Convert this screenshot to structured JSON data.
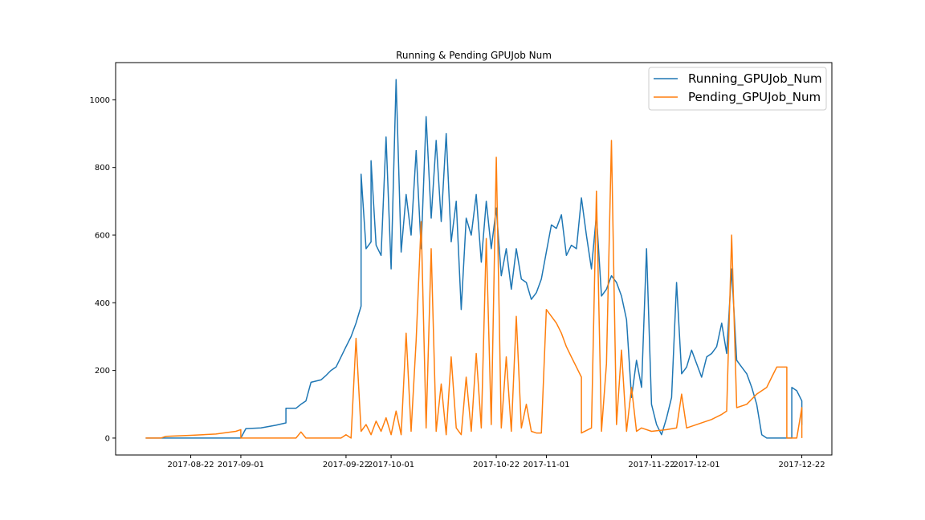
{
  "chart_data": {
    "type": "line",
    "title": "Running & Pending GPUJob Num",
    "xlabel": "",
    "ylabel": "",
    "x_axis": "date",
    "xlim": [
      "2017-08-07",
      "2017-12-28"
    ],
    "ylim": [
      -50,
      1110
    ],
    "x_ticks": [
      "2017-08-22",
      "2017-09-01",
      "2017-09-22",
      "2017-10-01",
      "2017-10-22",
      "2017-11-01",
      "2017-11-22",
      "2017-12-01",
      "2017-12-22"
    ],
    "y_ticks": [
      0,
      200,
      400,
      600,
      800,
      1000
    ],
    "grid": false,
    "legend_position": "top-right",
    "series": [
      {
        "name": "Running_GPUJob_Num",
        "color": "#1f77b4",
        "points": [
          [
            "2017-08-13",
            0
          ],
          [
            "2017-08-20",
            0
          ],
          [
            "2017-09-01",
            0
          ],
          [
            "2017-09-02",
            28
          ],
          [
            "2017-09-05",
            30
          ],
          [
            "2017-09-08",
            38
          ],
          [
            "2017-09-10",
            45
          ],
          [
            "2017-09-10",
            88
          ],
          [
            "2017-09-12",
            88
          ],
          [
            "2017-09-13",
            100
          ],
          [
            "2017-09-14",
            110
          ],
          [
            "2017-09-15",
            165
          ],
          [
            "2017-09-17",
            172
          ],
          [
            "2017-09-18",
            185
          ],
          [
            "2017-09-19",
            200
          ],
          [
            "2017-09-20",
            210
          ],
          [
            "2017-09-21",
            240
          ],
          [
            "2017-09-22",
            270
          ],
          [
            "2017-09-23",
            300
          ],
          [
            "2017-09-24",
            340
          ],
          [
            "2017-09-25",
            390
          ],
          [
            "2017-09-25",
            780
          ],
          [
            "2017-09-26",
            560
          ],
          [
            "2017-09-27",
            580
          ],
          [
            "2017-09-27",
            820
          ],
          [
            "2017-09-28",
            570
          ],
          [
            "2017-09-29",
            540
          ],
          [
            "2017-09-30",
            890
          ],
          [
            "2017-10-01",
            500
          ],
          [
            "2017-10-02",
            1060
          ],
          [
            "2017-10-03",
            550
          ],
          [
            "2017-10-04",
            720
          ],
          [
            "2017-10-05",
            600
          ],
          [
            "2017-10-06",
            850
          ],
          [
            "2017-10-07",
            560
          ],
          [
            "2017-10-08",
            950
          ],
          [
            "2017-10-09",
            650
          ],
          [
            "2017-10-10",
            880
          ],
          [
            "2017-10-11",
            640
          ],
          [
            "2017-10-12",
            900
          ],
          [
            "2017-10-13",
            580
          ],
          [
            "2017-10-14",
            700
          ],
          [
            "2017-10-15",
            380
          ],
          [
            "2017-10-16",
            650
          ],
          [
            "2017-10-17",
            600
          ],
          [
            "2017-10-18",
            720
          ],
          [
            "2017-10-19",
            520
          ],
          [
            "2017-10-20",
            700
          ],
          [
            "2017-10-21",
            560
          ],
          [
            "2017-10-22",
            680
          ],
          [
            "2017-10-23",
            480
          ],
          [
            "2017-10-24",
            560
          ],
          [
            "2017-10-25",
            440
          ],
          [
            "2017-10-26",
            560
          ],
          [
            "2017-10-27",
            470
          ],
          [
            "2017-10-28",
            460
          ],
          [
            "2017-10-29",
            410
          ],
          [
            "2017-10-30",
            430
          ],
          [
            "2017-10-31",
            470
          ],
          [
            "2017-11-01",
            550
          ],
          [
            "2017-11-02",
            630
          ],
          [
            "2017-11-03",
            620
          ],
          [
            "2017-11-04",
            660
          ],
          [
            "2017-11-05",
            540
          ],
          [
            "2017-11-06",
            570
          ],
          [
            "2017-11-07",
            560
          ],
          [
            "2017-11-08",
            710
          ],
          [
            "2017-11-09",
            600
          ],
          [
            "2017-11-10",
            500
          ],
          [
            "2017-11-11",
            660
          ],
          [
            "2017-11-12",
            420
          ],
          [
            "2017-11-13",
            440
          ],
          [
            "2017-11-14",
            480
          ],
          [
            "2017-11-15",
            460
          ],
          [
            "2017-11-16",
            420
          ],
          [
            "2017-11-17",
            350
          ],
          [
            "2017-11-18",
            120
          ],
          [
            "2017-11-19",
            230
          ],
          [
            "2017-11-20",
            150
          ],
          [
            "2017-11-21",
            560
          ],
          [
            "2017-11-22",
            100
          ],
          [
            "2017-11-23",
            40
          ],
          [
            "2017-11-24",
            10
          ],
          [
            "2017-11-25",
            60
          ],
          [
            "2017-11-26",
            120
          ],
          [
            "2017-11-27",
            460
          ],
          [
            "2017-11-28",
            190
          ],
          [
            "2017-11-29",
            210
          ],
          [
            "2017-11-30",
            260
          ],
          [
            "2017-12-01",
            220
          ],
          [
            "2017-12-02",
            180
          ],
          [
            "2017-12-03",
            240
          ],
          [
            "2017-12-04",
            250
          ],
          [
            "2017-12-05",
            270
          ],
          [
            "2017-12-06",
            340
          ],
          [
            "2017-12-07",
            250
          ],
          [
            "2017-12-08",
            500
          ],
          [
            "2017-12-09",
            230
          ],
          [
            "2017-12-10",
            210
          ],
          [
            "2017-12-11",
            190
          ],
          [
            "2017-12-12",
            150
          ],
          [
            "2017-12-13",
            100
          ],
          [
            "2017-12-14",
            10
          ],
          [
            "2017-12-15",
            0
          ],
          [
            "2017-12-20",
            0
          ],
          [
            "2017-12-20",
            150
          ],
          [
            "2017-12-21",
            140
          ],
          [
            "2017-12-22",
            110
          ],
          [
            "2017-12-22",
            40
          ],
          [
            "2017-12-22",
            110
          ]
        ]
      },
      {
        "name": "Pending_GPUJob_Num",
        "color": "#ff7f0e",
        "points": [
          [
            "2017-08-13",
            0
          ],
          [
            "2017-08-16",
            0
          ],
          [
            "2017-08-17",
            5
          ],
          [
            "2017-08-22",
            8
          ],
          [
            "2017-08-27",
            12
          ],
          [
            "2017-08-31",
            20
          ],
          [
            "2017-09-01",
            25
          ],
          [
            "2017-09-01",
            0
          ],
          [
            "2017-09-12",
            0
          ],
          [
            "2017-09-13",
            18
          ],
          [
            "2017-09-14",
            0
          ],
          [
            "2017-09-21",
            0
          ],
          [
            "2017-09-22",
            10
          ],
          [
            "2017-09-23",
            0
          ],
          [
            "2017-09-24",
            295
          ],
          [
            "2017-09-25",
            20
          ],
          [
            "2017-09-26",
            40
          ],
          [
            "2017-09-27",
            10
          ],
          [
            "2017-09-28",
            50
          ],
          [
            "2017-09-29",
            20
          ],
          [
            "2017-09-30",
            60
          ],
          [
            "2017-10-01",
            10
          ],
          [
            "2017-10-02",
            80
          ],
          [
            "2017-10-03",
            10
          ],
          [
            "2017-10-04",
            310
          ],
          [
            "2017-10-05",
            20
          ],
          [
            "2017-10-06",
            290
          ],
          [
            "2017-10-07",
            640
          ],
          [
            "2017-10-08",
            30
          ],
          [
            "2017-10-09",
            560
          ],
          [
            "2017-10-10",
            20
          ],
          [
            "2017-10-11",
            160
          ],
          [
            "2017-10-12",
            10
          ],
          [
            "2017-10-13",
            240
          ],
          [
            "2017-10-14",
            30
          ],
          [
            "2017-10-15",
            10
          ],
          [
            "2017-10-16",
            180
          ],
          [
            "2017-10-17",
            20
          ],
          [
            "2017-10-18",
            250
          ],
          [
            "2017-10-19",
            30
          ],
          [
            "2017-10-20",
            590
          ],
          [
            "2017-10-21",
            40
          ],
          [
            "2017-10-22",
            830
          ],
          [
            "2017-10-23",
            30
          ],
          [
            "2017-10-24",
            240
          ],
          [
            "2017-10-25",
            20
          ],
          [
            "2017-10-26",
            360
          ],
          [
            "2017-10-27",
            30
          ],
          [
            "2017-10-28",
            100
          ],
          [
            "2017-10-29",
            20
          ],
          [
            "2017-10-30",
            15
          ],
          [
            "2017-10-31",
            15
          ],
          [
            "2017-11-01",
            380
          ],
          [
            "2017-11-02",
            360
          ],
          [
            "2017-11-03",
            340
          ],
          [
            "2017-11-04",
            310
          ],
          [
            "2017-11-05",
            270
          ],
          [
            "2017-11-06",
            240
          ],
          [
            "2017-11-07",
            210
          ],
          [
            "2017-11-08",
            180
          ],
          [
            "2017-11-08",
            15
          ],
          [
            "2017-11-10",
            30
          ],
          [
            "2017-11-11",
            730
          ],
          [
            "2017-11-12",
            20
          ],
          [
            "2017-11-13",
            220
          ],
          [
            "2017-11-14",
            880
          ],
          [
            "2017-11-15",
            40
          ],
          [
            "2017-11-16",
            260
          ],
          [
            "2017-11-17",
            20
          ],
          [
            "2017-11-18",
            150
          ],
          [
            "2017-11-19",
            20
          ],
          [
            "2017-11-20",
            30
          ],
          [
            "2017-11-22",
            20
          ],
          [
            "2017-11-25",
            25
          ],
          [
            "2017-11-27",
            30
          ],
          [
            "2017-11-28",
            130
          ],
          [
            "2017-11-29",
            30
          ],
          [
            "2017-12-01",
            40
          ],
          [
            "2017-12-04",
            55
          ],
          [
            "2017-12-06",
            70
          ],
          [
            "2017-12-07",
            80
          ],
          [
            "2017-12-08",
            600
          ],
          [
            "2017-12-09",
            90
          ],
          [
            "2017-12-11",
            100
          ],
          [
            "2017-12-13",
            130
          ],
          [
            "2017-12-15",
            150
          ],
          [
            "2017-12-16",
            180
          ],
          [
            "2017-12-17",
            210
          ],
          [
            "2017-12-19",
            210
          ],
          [
            "2017-12-19",
            0
          ],
          [
            "2017-12-21",
            0
          ],
          [
            "2017-12-22",
            90
          ],
          [
            "2017-12-22",
            0
          ]
        ]
      }
    ]
  }
}
